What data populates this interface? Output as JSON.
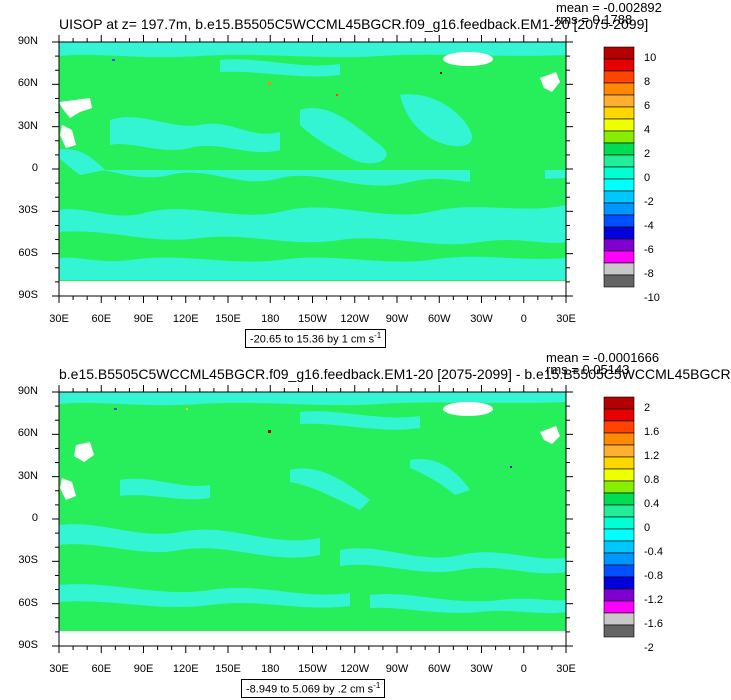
{
  "panels": [
    {
      "title": "UISOP at z= 197.7m, b.e15.B5505C5WCCML45BGCR.f09_g16.feedback.EM1-20 [2075-2099]",
      "mean": "mean = -0.002892",
      "rms": "rms = 0.1788",
      "range": "-20.65 to 15.36 by 1 cm s",
      "range_sup": "-1",
      "lat_labels": [
        "90N",
        "60N",
        "30N",
        "0",
        "30S",
        "60S",
        "90S"
      ],
      "lon_labels": [
        "30E",
        "60E",
        "90E",
        "120E",
        "150E",
        "180",
        "150W",
        "120W",
        "90W",
        "60W",
        "30W",
        "0",
        "30E"
      ],
      "labelbar": {
        "labels": [
          "10",
          "8",
          "6",
          "4",
          "2",
          "0",
          "-2",
          "-4",
          "-6",
          "-8",
          "-10"
        ],
        "colors": [
          "#b40000",
          "#e60000",
          "#ff4400",
          "#ff8a00",
          "#ffb030",
          "#ffd700",
          "#eeff00",
          "#88ee00",
          "#00dd55",
          "#22ee99",
          "#00ffd2",
          "#00ffff",
          "#00c8ff",
          "#0096ff",
          "#0050ff",
          "#0000dd",
          "#8000d0",
          "#ff00ff",
          "#c8c8c8",
          "#646464"
        ]
      }
    },
    {
      "title": "b.e15.B5505C5WCCML45BGCR.f09_g16.feedback.EM1-20 [2075-2099] - b.e15.B5505C5WCCML45BGCR",
      "mean": "mean = -0.0001666",
      "rms": "rms = 0.05143",
      "range": "-8.949 to 5.069 by .2 cm s",
      "range_sup": "-1",
      "lat_labels": [
        "90N",
        "60N",
        "30N",
        "0",
        "30S",
        "60S",
        "90S"
      ],
      "lon_labels": [
        "30E",
        "60E",
        "90E",
        "120E",
        "150E",
        "180",
        "150W",
        "120W",
        "90W",
        "60W",
        "30W",
        "0",
        "30E"
      ],
      "labelbar": {
        "labels": [
          "2",
          "1.6",
          "1.2",
          "0.8",
          "0.4",
          "0",
          "-0.4",
          "-0.8",
          "-1.2",
          "-1.6",
          "-2"
        ],
        "colors": [
          "#b40000",
          "#e60000",
          "#ff4400",
          "#ff8a00",
          "#ffb030",
          "#ffd700",
          "#eeff00",
          "#88ee00",
          "#00dd55",
          "#22ee99",
          "#00ffd2",
          "#00ffff",
          "#00c8ff",
          "#0096ff",
          "#0050ff",
          "#0000dd",
          "#8000d0",
          "#ff00ff",
          "#c8c8c8",
          "#646464"
        ]
      }
    }
  ],
  "map_colors": {
    "ocean_main": "#27ef5c",
    "ocean_alt": "#33f5d3",
    "land": "#ffffff",
    "missing": "#ffffff"
  }
}
